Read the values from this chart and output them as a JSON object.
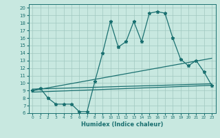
{
  "xlabel": "Humidex (Indice chaleur)",
  "bg_color": "#c8e8e0",
  "grid_color": "#a0c8c0",
  "line_color": "#1a7070",
  "xlim": [
    -0.5,
    23.5
  ],
  "ylim": [
    6,
    20.5
  ],
  "xticks": [
    0,
    1,
    2,
    3,
    4,
    5,
    6,
    7,
    8,
    9,
    10,
    11,
    12,
    13,
    14,
    15,
    16,
    17,
    18,
    19,
    20,
    21,
    22,
    23
  ],
  "yticks": [
    6,
    7,
    8,
    9,
    10,
    11,
    12,
    13,
    14,
    15,
    16,
    17,
    18,
    19,
    20
  ],
  "main_x": [
    0,
    1,
    2,
    3,
    4,
    5,
    6,
    7,
    8,
    9,
    10,
    11,
    12,
    13,
    14,
    15,
    16,
    17,
    18,
    19,
    20,
    21,
    22,
    23
  ],
  "main_y": [
    9.0,
    9.3,
    8.0,
    7.2,
    7.2,
    7.2,
    6.2,
    6.2,
    10.2,
    14.0,
    18.2,
    14.8,
    15.5,
    18.2,
    15.5,
    19.3,
    19.5,
    19.3,
    16.0,
    13.2,
    12.3,
    13.0,
    11.5,
    9.7
  ],
  "line2_x": [
    0,
    23
  ],
  "line2_y": [
    8.8,
    9.7
  ],
  "line3_x": [
    0,
    23
  ],
  "line3_y": [
    9.0,
    13.3
  ],
  "line4_x": [
    0,
    23
  ],
  "line4_y": [
    9.2,
    9.9
  ]
}
